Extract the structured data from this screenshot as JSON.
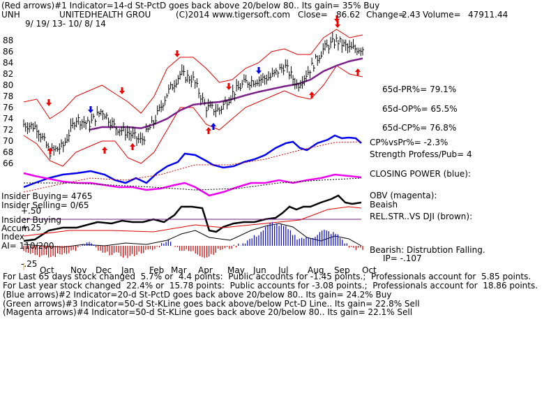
{
  "header": {
    "line1": "(Red arrows)#1 Indicator=14-d St-PctD goes back above 20/below 80.. Its gain= 35% Buy",
    "symbol": "UNH",
    "company": "UNITEDHEALTH GROU",
    "copyright": "(C)2014 www.tigersoft.com",
    "close_label": "Close=",
    "close": "86.62",
    "change_label": "Change=",
    "change": "2.43",
    "volume_label": "Volume=",
    "volume": "47911.44",
    "date_range": "9/ 19/ 13- 10/ 8/ 14"
  },
  "side_labels": {
    "pr": "65d-PR%= 79.1%",
    "op": "65d-OP%= 65.5%",
    "cp": "65d-CP%= 76.8%",
    "cpvspr": "CP%vsPr%= -2.3%",
    "strength": "Strength Profess/Pub= 4",
    "closing_power": "CLOSING POWER (blue):",
    "obv": "OBV (magenta):",
    "obv_state": "Beaish",
    "rel_str": "REL.STR..VS DJI (brown):",
    "bearish": "Bearish: Distrubtion Falling.",
    "ip": "IP= -.107"
  },
  "left_labels": {
    "insider_buying": "Insider Buying= 4765",
    "insider_selling": "Insider Selling= 0/65",
    "plus50": "+.50",
    "insider_buying2": "Insider Buying",
    "accum": "Accum",
    "plus25": "+.25",
    "index": "Index",
    "ai": "AI= 110/200",
    "minus25": "-.25"
  },
  "footer": {
    "l1": "For Last 65 days stock changed  5.7% or  4.4 points:  Public accounts for -1.45 points.;  Professionals account for  5.85 points.",
    "l2": "For Last year stock changed  22.4% or  15.78 points:  Public accounts for -3.08 points.;  Professionals account for  18.86 points.",
    "l3": "(Blue arrows)#2 Indicator=20-d St-PctD goes back above 20/below 80.. Its gain= 24.2% Buy",
    "l4": "(Green arrows)#3 Indicator=50-d St-KLine goes back above/below Pct-D Line.. Its gain= 22.8% Sell",
    "l5": "(Magenta arrows)#4 Indicator=50-d St-KLine goes back above 20/below 80.. Its gain= 22.1% Sell"
  },
  "colors": {
    "price": "#000000",
    "band": "#dd0000",
    "ma": "#7a1f8a",
    "closing_power": "#0000ee",
    "obv": "#ee00ee",
    "relstr": "#000000",
    "accum_pos": "#0000cc",
    "accum_neg": "#cc0000",
    "arrow_red": "#ee0000",
    "arrow_blue": "#0000ee",
    "hline": "#7a1f8a"
  },
  "chart_data": {
    "type": "line",
    "title": "UNITEDHEALTH GROU",
    "x_ticks": [
      "Oct",
      "Nov",
      "Dec",
      "Jan",
      "Feb",
      "Mar",
      "Apr",
      "May",
      "Jun",
      "Jul",
      "Aug",
      "Sep",
      "Oct"
    ],
    "y_ticks": [
      66,
      68,
      70,
      72,
      74,
      76,
      78,
      80,
      82,
      84,
      86,
      88
    ],
    "ylim": [
      64,
      90
    ],
    "x": [
      "2013-09-19",
      "2013-10-01",
      "2013-10-15",
      "2013-11-01",
      "2013-11-15",
      "2013-12-01",
      "2013-12-15",
      "2014-01-01",
      "2014-01-15",
      "2014-02-01",
      "2014-02-15",
      "2014-03-01",
      "2014-03-15",
      "2014-04-01",
      "2014-04-15",
      "2014-05-01",
      "2014-05-15",
      "2014-06-01",
      "2014-06-15",
      "2014-07-01",
      "2014-07-15",
      "2014-08-01",
      "2014-08-15",
      "2014-09-01",
      "2014-09-15",
      "2014-10-01",
      "2014-10-08"
    ],
    "series": [
      {
        "name": "Close",
        "values": [
          73,
          72.5,
          68,
          69,
          74,
          73,
          75.5,
          72.5,
          71.5,
          70,
          73.5,
          78.5,
          82,
          81,
          76,
          75.5,
          78.5,
          80.5,
          81,
          81.5,
          83.5,
          80,
          83,
          86.5,
          88,
          86.5,
          86.6
        ]
      }
    ],
    "upper_band": [
      77,
      77.5,
      74,
      75.5,
      78,
      79,
      80,
      78.5,
      77,
      75,
      78,
      83,
      85,
      85,
      83,
      80.5,
      81,
      83,
      84,
      86,
      86.5,
      85.5,
      85.5,
      88.5,
      90,
      88.5,
      89
    ],
    "lower_band": [
      71,
      69.5,
      66.5,
      65.5,
      68,
      69,
      70,
      70,
      67,
      66,
      68,
      72,
      76,
      76,
      73,
      72,
      74,
      76,
      77,
      78,
      79,
      78,
      77.5,
      80,
      83.5,
      82,
      81.5
    ],
    "ma": [
      null,
      null,
      null,
      null,
      null,
      72,
      72.5,
      72.5,
      72.5,
      72.3,
      73,
      74,
      75.5,
      76.5,
      76.8,
      77,
      77.5,
      78.2,
      78.8,
      79.3,
      79.8,
      80.2,
      81,
      82.5,
      83.5,
      84.3,
      84.8
    ],
    "closing_power_px": null,
    "upper_panel_indicators": [
      "CLOSING POWER",
      "OBV"
    ],
    "accum_index": [
      -0.05,
      -0.12,
      -0.15,
      -0.1,
      -0.05,
      0.05,
      -0.1,
      -0.1,
      -0.15,
      -0.08,
      -0.05,
      0.08,
      -0.05,
      -0.08,
      -0.15,
      -0.05,
      -0.02,
      0.05,
      0.15,
      0.3,
      0.25,
      0.1,
      0.1,
      0.2,
      0.15,
      -0.02,
      -0.05
    ],
    "accum_ylim": [
      -0.25,
      0.5
    ]
  }
}
